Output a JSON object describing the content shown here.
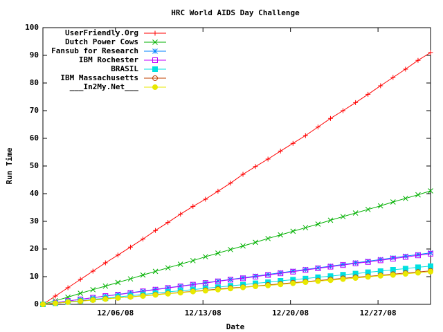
{
  "chart_data": {
    "type": "line",
    "title": "HRC World AIDS Day Challenge",
    "xlabel": "Date",
    "ylabel": "Run Time",
    "x": [
      0.2,
      1.2,
      2.2,
      3.2,
      4.2,
      5.2,
      6.2,
      7.2,
      8.2,
      9.2,
      10.2,
      11.2,
      12.2,
      13.2,
      14.2,
      15.2,
      16.2,
      17.2,
      18.2,
      19.2,
      20.2,
      21.2,
      22.2,
      23.2,
      24.2,
      25.2,
      26.2,
      27.2,
      28.2,
      29.2,
      30.2,
      31.2
    ],
    "xlim": [
      0.2,
      31.2
    ],
    "xticks": [
      {
        "value": 6,
        "label": "12/06/08"
      },
      {
        "value": 13,
        "label": "12/13/08"
      },
      {
        "value": 20,
        "label": "12/20/08"
      },
      {
        "value": 27,
        "label": "12/27/08"
      }
    ],
    "ylim": [
      0,
      100
    ],
    "yticks": [
      0,
      10,
      20,
      30,
      40,
      50,
      60,
      70,
      80,
      90,
      100
    ],
    "grid": false,
    "legend": "top-left",
    "series": [
      {
        "name": "UserFriendly.Org",
        "color": "#ff0000",
        "marker": "plus",
        "values": [
          0,
          3,
          6,
          9,
          12,
          15,
          17.8,
          20.7,
          23.6,
          26.7,
          29.6,
          32.6,
          35.4,
          38,
          40.9,
          43.8,
          47,
          49.8,
          52.5,
          55.4,
          58.2,
          61,
          64.1,
          67.2,
          70,
          72.9,
          75.9,
          79,
          82,
          85,
          88.2,
          91
        ]
      },
      {
        "name": "Dutch Power Cows",
        "color": "#00b000",
        "marker": "cross",
        "values": [
          0,
          1.3,
          2.6,
          4,
          5.3,
          6.6,
          7.9,
          9.2,
          10.6,
          11.9,
          13.2,
          14.5,
          15.8,
          17.2,
          18.5,
          19.8,
          21.1,
          22.4,
          23.8,
          25.1,
          26.4,
          27.7,
          29,
          30.4,
          31.7,
          33,
          34.3,
          35.6,
          37,
          38.3,
          39.6,
          41
        ]
      },
      {
        "name": "Fansub for Research",
        "color": "#0080ff",
        "marker": "star",
        "values": [
          0,
          0.6,
          1.2,
          1.8,
          2.4,
          3,
          3.6,
          4.2,
          4.8,
          5.4,
          6,
          6.6,
          7.2,
          7.8,
          8.4,
          9,
          9.6,
          10.2,
          10.8,
          11.4,
          12,
          12.6,
          13.2,
          13.8,
          14.4,
          15,
          15.6,
          16.2,
          16.8,
          17.4,
          18,
          18.6
        ]
      },
      {
        "name": "IBM Rochester",
        "color": "#c000ff",
        "marker": "square-open",
        "values": [
          0,
          0.6,
          1.2,
          1.8,
          2.4,
          3,
          3.5,
          4.1,
          4.7,
          5.3,
          5.9,
          6.5,
          7.1,
          7.7,
          8.3,
          8.9,
          9.4,
          10,
          10.6,
          11.2,
          11.8,
          12.4,
          13,
          13.6,
          14.2,
          14.8,
          15.3,
          15.9,
          16.5,
          17.1,
          17.7,
          18.3
        ]
      },
      {
        "name": "BRASIL",
        "color": "#00e0e0",
        "marker": "square-filled",
        "values": [
          0,
          0.4,
          0.9,
          1.3,
          1.8,
          2.2,
          2.7,
          3.1,
          3.6,
          4,
          4.5,
          4.9,
          5.3,
          5.8,
          6.2,
          6.7,
          7.1,
          7.6,
          8,
          8.5,
          8.9,
          9.3,
          9.8,
          10.2,
          10.7,
          11.1,
          11.6,
          12,
          12.5,
          12.9,
          13.4,
          13.8
        ]
      },
      {
        "name": "IBM Massachusetts",
        "color": "#c04000",
        "marker": "circle-open",
        "values": [
          0,
          0.4,
          0.8,
          1.2,
          1.6,
          2,
          2.3,
          2.7,
          3.1,
          3.5,
          3.9,
          4.3,
          4.7,
          5.1,
          5.5,
          5.9,
          6.2,
          6.6,
          7,
          7.4,
          7.8,
          8.2,
          8.6,
          9,
          9.4,
          9.8,
          10.1,
          10.5,
          10.9,
          11.3,
          11.7,
          12.1
        ]
      },
      {
        "name": "___In2My.Net___",
        "color": "#e8e800",
        "marker": "circle-filled",
        "values": [
          0,
          0.4,
          0.8,
          1.1,
          1.5,
          1.9,
          2.3,
          2.7,
          3,
          3.4,
          3.8,
          4.2,
          4.6,
          4.9,
          5.3,
          5.7,
          6.1,
          6.5,
          6.8,
          7.2,
          7.6,
          8,
          8.4,
          8.7,
          9.1,
          9.5,
          9.9,
          10.3,
          10.6,
          11,
          11.4,
          11.8
        ]
      }
    ]
  }
}
